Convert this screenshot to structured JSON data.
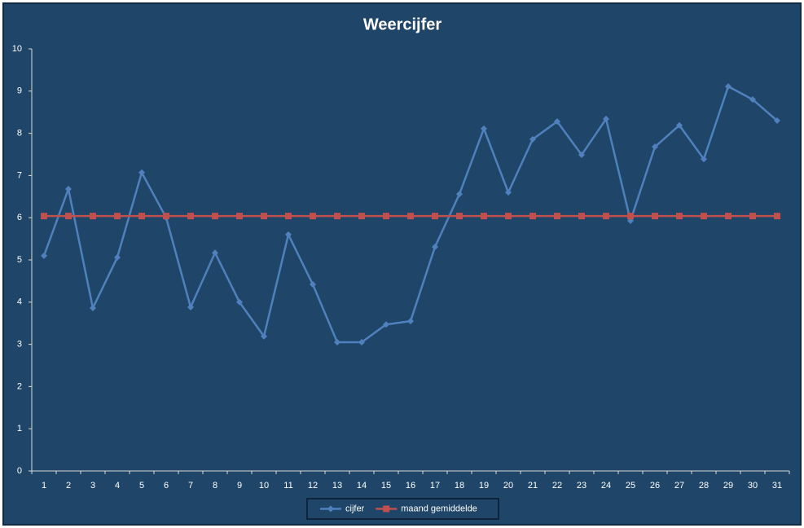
{
  "chart_data": {
    "type": "line",
    "title": "Weercijfer",
    "categories": [
      1,
      2,
      3,
      4,
      5,
      6,
      7,
      8,
      9,
      10,
      11,
      12,
      13,
      14,
      15,
      16,
      17,
      18,
      19,
      20,
      21,
      22,
      23,
      24,
      25,
      26,
      27,
      28,
      29,
      30,
      31
    ],
    "series": [
      {
        "name": "cijfer",
        "color": "#4f81bd",
        "marker": "diamond",
        "values": [
          5.1,
          6.68,
          3.86,
          5.06,
          7.07,
          6.0,
          3.88,
          5.17,
          4.0,
          3.19,
          5.6,
          4.42,
          3.05,
          3.05,
          3.47,
          3.55,
          5.31,
          6.56,
          8.11,
          6.6,
          7.86,
          8.28,
          7.49,
          8.34,
          5.93,
          7.68,
          8.19,
          7.39,
          9.11,
          8.8,
          8.3
        ]
      },
      {
        "name": "maand gemiddelde",
        "color": "#c0504d",
        "marker": "square",
        "values": [
          6.04,
          6.04,
          6.04,
          6.04,
          6.04,
          6.04,
          6.04,
          6.04,
          6.04,
          6.04,
          6.04,
          6.04,
          6.04,
          6.04,
          6.04,
          6.04,
          6.04,
          6.04,
          6.04,
          6.04,
          6.04,
          6.04,
          6.04,
          6.04,
          6.04,
          6.04,
          6.04,
          6.04,
          6.04,
          6.04,
          6.04
        ]
      }
    ],
    "ylim": [
      0,
      10
    ],
    "yticks": [
      0,
      1,
      2,
      3,
      4,
      5,
      6,
      7,
      8,
      9,
      10
    ],
    "grid": false,
    "legend": "bottom"
  }
}
